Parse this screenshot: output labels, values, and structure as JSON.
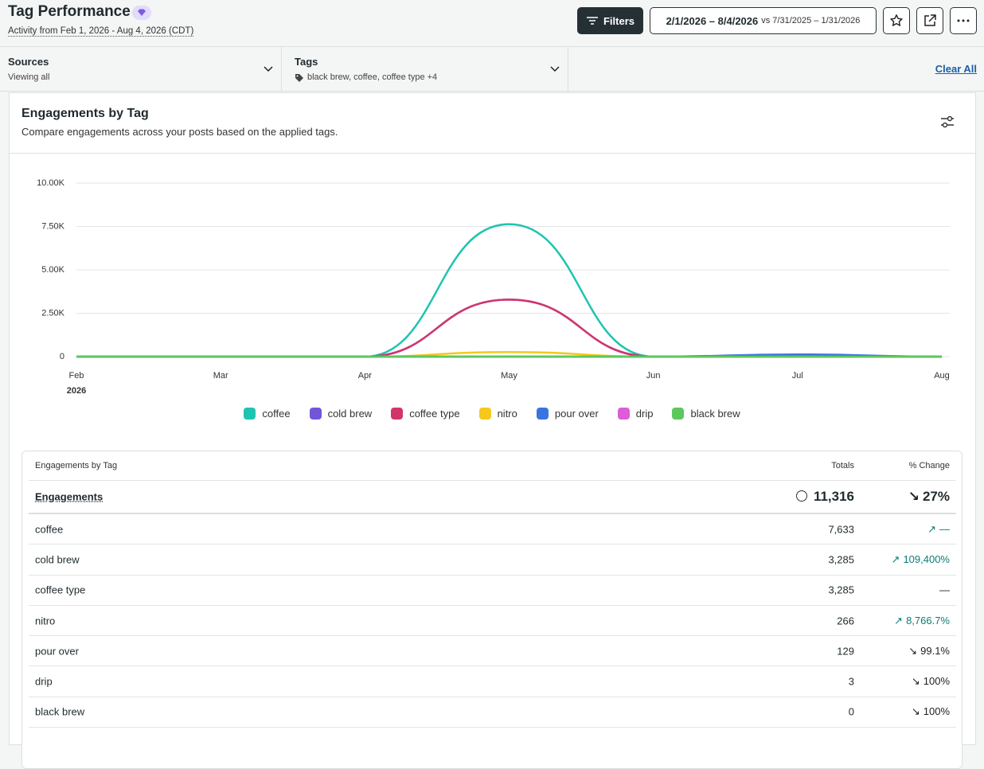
{
  "header": {
    "title": "Tag Performance",
    "subtitle": "Activity from Feb 1, 2026 - Aug 4, 2026 (CDT)",
    "filters_button": "Filters",
    "date_range": "2/1/2026 – 8/4/2026",
    "compare_range": "vs 7/31/2025 – 1/31/2026"
  },
  "filters": {
    "sources": {
      "label": "Sources",
      "value": "Viewing all"
    },
    "tags": {
      "label": "Tags",
      "value": "black brew, coffee, coffee type +4"
    },
    "clear_all": "Clear All"
  },
  "chart_data": {
    "type": "line",
    "title": "Engagements by Tag",
    "subtitle": "Compare engagements across your posts based on the applied tags.",
    "categories": [
      "Feb",
      "Mar",
      "Apr",
      "May",
      "Jun",
      "Jul",
      "Aug"
    ],
    "x_sublabel": "2026",
    "ylim": [
      0,
      10000
    ],
    "yticks": [
      0,
      {
        "value": 2500,
        "label": "2.50K"
      },
      {
        "value": 5000,
        "label": "5.00K"
      },
      {
        "value": 7500,
        "label": "7.50K"
      },
      {
        "value": 10000,
        "label": "10.00K"
      }
    ],
    "grid": true,
    "smooth": true,
    "legend": "bottom",
    "series": [
      {
        "name": "coffee",
        "color": "#1ec4b0",
        "values": [
          0,
          0,
          0,
          7633,
          0,
          0,
          0
        ]
      },
      {
        "name": "cold brew",
        "color": "#7256d8",
        "values": [
          0,
          0,
          0,
          3285,
          0,
          0,
          0
        ]
      },
      {
        "name": "coffee type",
        "color": "#d1356b",
        "values": [
          0,
          0,
          0,
          3285,
          0,
          0,
          0
        ]
      },
      {
        "name": "nitro",
        "color": "#f6c81c",
        "values": [
          0,
          0,
          0,
          266,
          0,
          0,
          0
        ]
      },
      {
        "name": "pour over",
        "color": "#3a74e0",
        "values": [
          0,
          0,
          0,
          0,
          0,
          129,
          0
        ]
      },
      {
        "name": "drip",
        "color": "#de5cd6",
        "values": [
          0,
          0,
          0,
          3,
          0,
          0,
          0
        ]
      },
      {
        "name": "black brew",
        "color": "#5cc85c",
        "values": [
          0,
          0,
          0,
          0,
          0,
          0,
          0
        ]
      }
    ]
  },
  "table": {
    "title": "Engagements by Tag",
    "columns": [
      "Totals",
      "% Change"
    ],
    "total": {
      "label": "Engagements",
      "total": "11,316",
      "change": "27%",
      "trend": "down"
    },
    "rows": [
      {
        "label": "coffee",
        "total": "7,633",
        "change": "—",
        "trend": "up"
      },
      {
        "label": "cold brew",
        "total": "3,285",
        "change": "109,400%",
        "trend": "up"
      },
      {
        "label": "coffee type",
        "total": "3,285",
        "change": "—",
        "trend": null
      },
      {
        "label": "nitro",
        "total": "266",
        "change": "8,766.7%",
        "trend": "up"
      },
      {
        "label": "pour over",
        "total": "129",
        "change": "99.1%",
        "trend": "down"
      },
      {
        "label": "drip",
        "total": "3",
        "change": "100%",
        "trend": "down"
      },
      {
        "label": "black brew",
        "total": "0",
        "change": "100%",
        "trend": "down"
      }
    ]
  }
}
